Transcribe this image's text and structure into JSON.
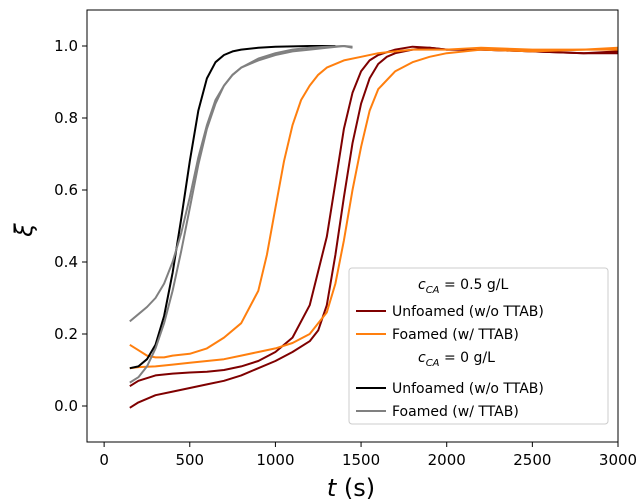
{
  "chart_data": {
    "type": "line",
    "xlabel_var": "t",
    "xlabel_unit": "(s)",
    "ylabel": "ξ",
    "xlim": [
      -100,
      3000
    ],
    "ylim": [
      -0.1,
      1.1
    ],
    "xticks": [
      "0",
      "500",
      "1000",
      "1500",
      "2000",
      "2500",
      "3000"
    ],
    "yticks": [
      "0.0",
      "0.2",
      "0.4",
      "0.6",
      "0.8",
      "1.0"
    ],
    "grid": false,
    "legend_position": "lower-right",
    "legend": {
      "group1_title": "c_CA = 0.5 g/L",
      "group1_title_var": "c",
      "group1_title_sub": "CA",
      "group1_title_value": " = 0.5 g/L",
      "group2_title": "c_CA = 0 g/L",
      "group2_title_var": "c",
      "group2_title_sub": "CA",
      "group2_title_value": " = 0 g/L",
      "entries": [
        "Unfoamed (w/o TTAB)",
        "Foamed (w/ TTAB)",
        "Unfoamed (w/o TTAB)",
        "Foamed (w/ TTAB)"
      ]
    },
    "series": [
      {
        "group": "c_CA = 0.5 g/L",
        "label": "Unfoamed (w/o TTAB)",
        "color": "#7f0000",
        "x": [
          150,
          200,
          300,
          400,
          500,
          600,
          700,
          800,
          900,
          1000,
          1100,
          1200,
          1300,
          1350,
          1400,
          1450,
          1500,
          1550,
          1600,
          1700,
          1800,
          1900,
          2000,
          2200,
          2500,
          2800,
          3000
        ],
        "y": [
          0.055,
          0.07,
          0.085,
          0.09,
          0.093,
          0.095,
          0.1,
          0.11,
          0.125,
          0.15,
          0.19,
          0.28,
          0.47,
          0.62,
          0.77,
          0.87,
          0.93,
          0.96,
          0.975,
          0.99,
          0.998,
          0.995,
          0.99,
          0.99,
          0.985,
          0.98,
          0.98
        ]
      },
      {
        "group": "c_CA = 0.5 g/L",
        "label": "Unfoamed (w/o TTAB)",
        "color": "#7f0000",
        "x": [
          150,
          200,
          300,
          400,
          500,
          600,
          700,
          800,
          900,
          1000,
          1100,
          1200,
          1250,
          1300,
          1350,
          1400,
          1450,
          1500,
          1550,
          1600,
          1650,
          1700,
          1800,
          1900,
          2000,
          2200,
          2500,
          2800,
          3000
        ],
        "y": [
          -0.005,
          0.01,
          0.03,
          0.04,
          0.05,
          0.06,
          0.07,
          0.085,
          0.105,
          0.125,
          0.15,
          0.18,
          0.21,
          0.28,
          0.42,
          0.58,
          0.73,
          0.84,
          0.91,
          0.95,
          0.97,
          0.98,
          0.99,
          0.995,
          0.99,
          0.99,
          0.985,
          0.98,
          0.985
        ]
      },
      {
        "group": "c_CA = 0.5 g/L",
        "label": "Foamed (w/ TTAB)",
        "color": "#ff7f0e",
        "x": [
          150,
          200,
          250,
          300,
          350,
          400,
          500,
          600,
          700,
          800,
          900,
          950,
          1000,
          1050,
          1100,
          1150,
          1200,
          1250,
          1300,
          1400,
          1500,
          1600,
          1700,
          1800,
          2000,
          2200,
          2500,
          2800,
          3000
        ],
        "y": [
          0.17,
          0.155,
          0.14,
          0.135,
          0.135,
          0.14,
          0.145,
          0.16,
          0.19,
          0.23,
          0.32,
          0.42,
          0.55,
          0.68,
          0.78,
          0.85,
          0.89,
          0.92,
          0.94,
          0.96,
          0.97,
          0.98,
          0.985,
          0.99,
          0.99,
          0.995,
          0.99,
          0.99,
          0.99
        ]
      },
      {
        "group": "c_CA = 0.5 g/L",
        "label": "Foamed (w/ TTAB)",
        "color": "#ff7f0e",
        "x": [
          150,
          200,
          300,
          400,
          500,
          600,
          700,
          800,
          900,
          1000,
          1100,
          1200,
          1300,
          1350,
          1400,
          1450,
          1500,
          1550,
          1600,
          1700,
          1800,
          1900,
          2000,
          2200,
          2500,
          2800,
          3000
        ],
        "y": [
          0.105,
          0.108,
          0.11,
          0.115,
          0.12,
          0.125,
          0.13,
          0.14,
          0.15,
          0.16,
          0.175,
          0.2,
          0.26,
          0.34,
          0.46,
          0.6,
          0.72,
          0.82,
          0.88,
          0.93,
          0.955,
          0.97,
          0.98,
          0.99,
          0.985,
          0.99,
          0.995
        ]
      },
      {
        "group": "c_CA = 0 g/L",
        "label": "Unfoamed (w/o TTAB)",
        "color": "#000000",
        "x": [
          150,
          200,
          250,
          300,
          350,
          400,
          450,
          500,
          550,
          600,
          650,
          700,
          750,
          800,
          900,
          1000,
          1100,
          1200,
          1300,
          1350
        ],
        "y": [
          0.105,
          0.11,
          0.13,
          0.17,
          0.25,
          0.37,
          0.52,
          0.68,
          0.82,
          0.91,
          0.955,
          0.975,
          0.985,
          0.99,
          0.995,
          0.998,
          0.999,
          1.0,
          1.0,
          1.0
        ]
      },
      {
        "group": "c_CA = 0 g/L",
        "label": "Foamed (w/ TTAB)",
        "color": "#808080",
        "x": [
          150,
          200,
          250,
          300,
          350,
          400,
          450,
          500,
          550,
          600,
          650,
          700,
          750,
          800,
          900,
          1000,
          1100,
          1200,
          1300,
          1400,
          1450
        ],
        "y": [
          0.235,
          0.255,
          0.275,
          0.3,
          0.34,
          0.4,
          0.48,
          0.58,
          0.69,
          0.78,
          0.85,
          0.89,
          0.92,
          0.94,
          0.96,
          0.975,
          0.985,
          0.99,
          0.995,
          1.0,
          0.995
        ]
      },
      {
        "group": "c_CA = 0 g/L",
        "label": "Foamed (w/ TTAB)",
        "color": "#808080",
        "x": [
          150,
          200,
          250,
          300,
          350,
          400,
          450,
          500,
          550,
          600,
          650,
          700,
          750,
          800,
          900,
          1000,
          1100,
          1200,
          1300,
          1400,
          1450
        ],
        "y": [
          0.065,
          0.08,
          0.11,
          0.16,
          0.23,
          0.32,
          0.43,
          0.55,
          0.67,
          0.77,
          0.84,
          0.89,
          0.92,
          0.94,
          0.965,
          0.98,
          0.99,
          0.995,
          0.998,
          1.0,
          0.998
        ]
      }
    ]
  }
}
